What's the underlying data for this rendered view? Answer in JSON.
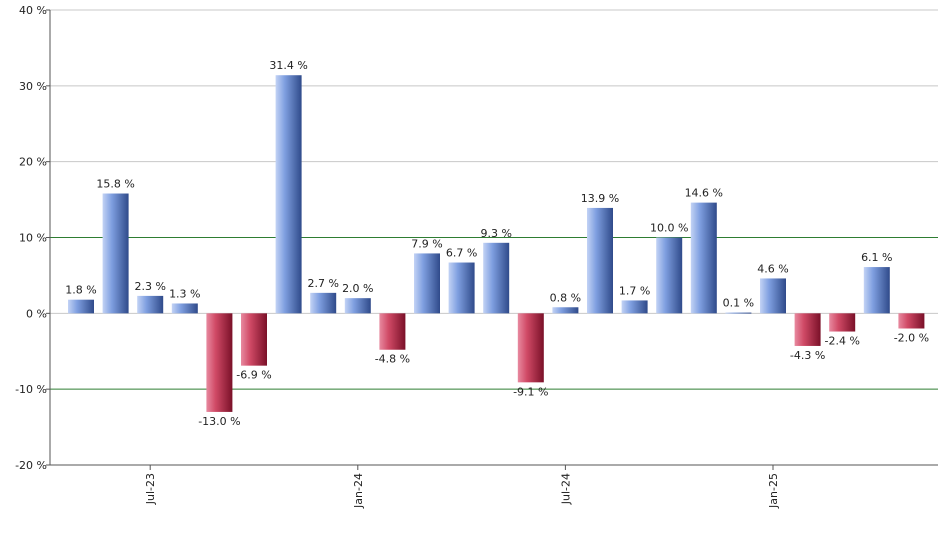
{
  "chart_data": {
    "type": "bar",
    "values": [
      1.8,
      15.8,
      2.3,
      1.3,
      -13.0,
      -6.9,
      31.4,
      2.7,
      2.0,
      -4.8,
      7.9,
      6.7,
      9.3,
      -9.1,
      0.8,
      13.9,
      1.7,
      10.0,
      14.6,
      0.1,
      4.6,
      -4.3,
      -2.4,
      6.1,
      -2.0
    ],
    "value_labels": [
      "1.8 %",
      "15.8 %",
      "2.3 %",
      "1.3 %",
      "-13.0 %",
      "-6.9 %",
      "31.4 %",
      "2.7 %",
      "2.0 %",
      "-4.8 %",
      "7.9 %",
      "6.7 %",
      "9.3 %",
      "-9.1 %",
      "0.8 %",
      "13.9 %",
      "1.7 %",
      "10.0 %",
      "14.6 %",
      "0.1 %",
      "4.6 %",
      "-4.3 %",
      "-2.4 %",
      "6.1 %",
      "-2.0 %"
    ],
    "x_ticks": [
      {
        "label": "Jul-23",
        "index": 2
      },
      {
        "label": "Jan-24",
        "index": 8
      },
      {
        "label": "Jul-24",
        "index": 14
      },
      {
        "label": "Jan-25",
        "index": 20
      }
    ],
    "y_ticks": [
      {
        "value": 40,
        "label": "40 %"
      },
      {
        "value": 30,
        "label": "30 %"
      },
      {
        "value": 20,
        "label": "20 %"
      },
      {
        "value": 10,
        "label": "10 %"
      },
      {
        "value": 0,
        "label": "0 %"
      },
      {
        "value": -10,
        "label": "-10 %"
      },
      {
        "value": -20,
        "label": "-20 %"
      }
    ],
    "ylim": [
      -20,
      40
    ],
    "reference_lines": [
      10,
      -10
    ],
    "grid": true,
    "colors": {
      "positive": "#7f9fe0",
      "positive_dark": "#2f4a8a",
      "positive_light": "#c3d3f5",
      "negative": "#d04a66",
      "negative_dark": "#7a1028",
      "negative_light": "#e88aa0",
      "gridline": "#c8c8c8",
      "reference": "#2e7d32",
      "axis": "#555555"
    }
  }
}
